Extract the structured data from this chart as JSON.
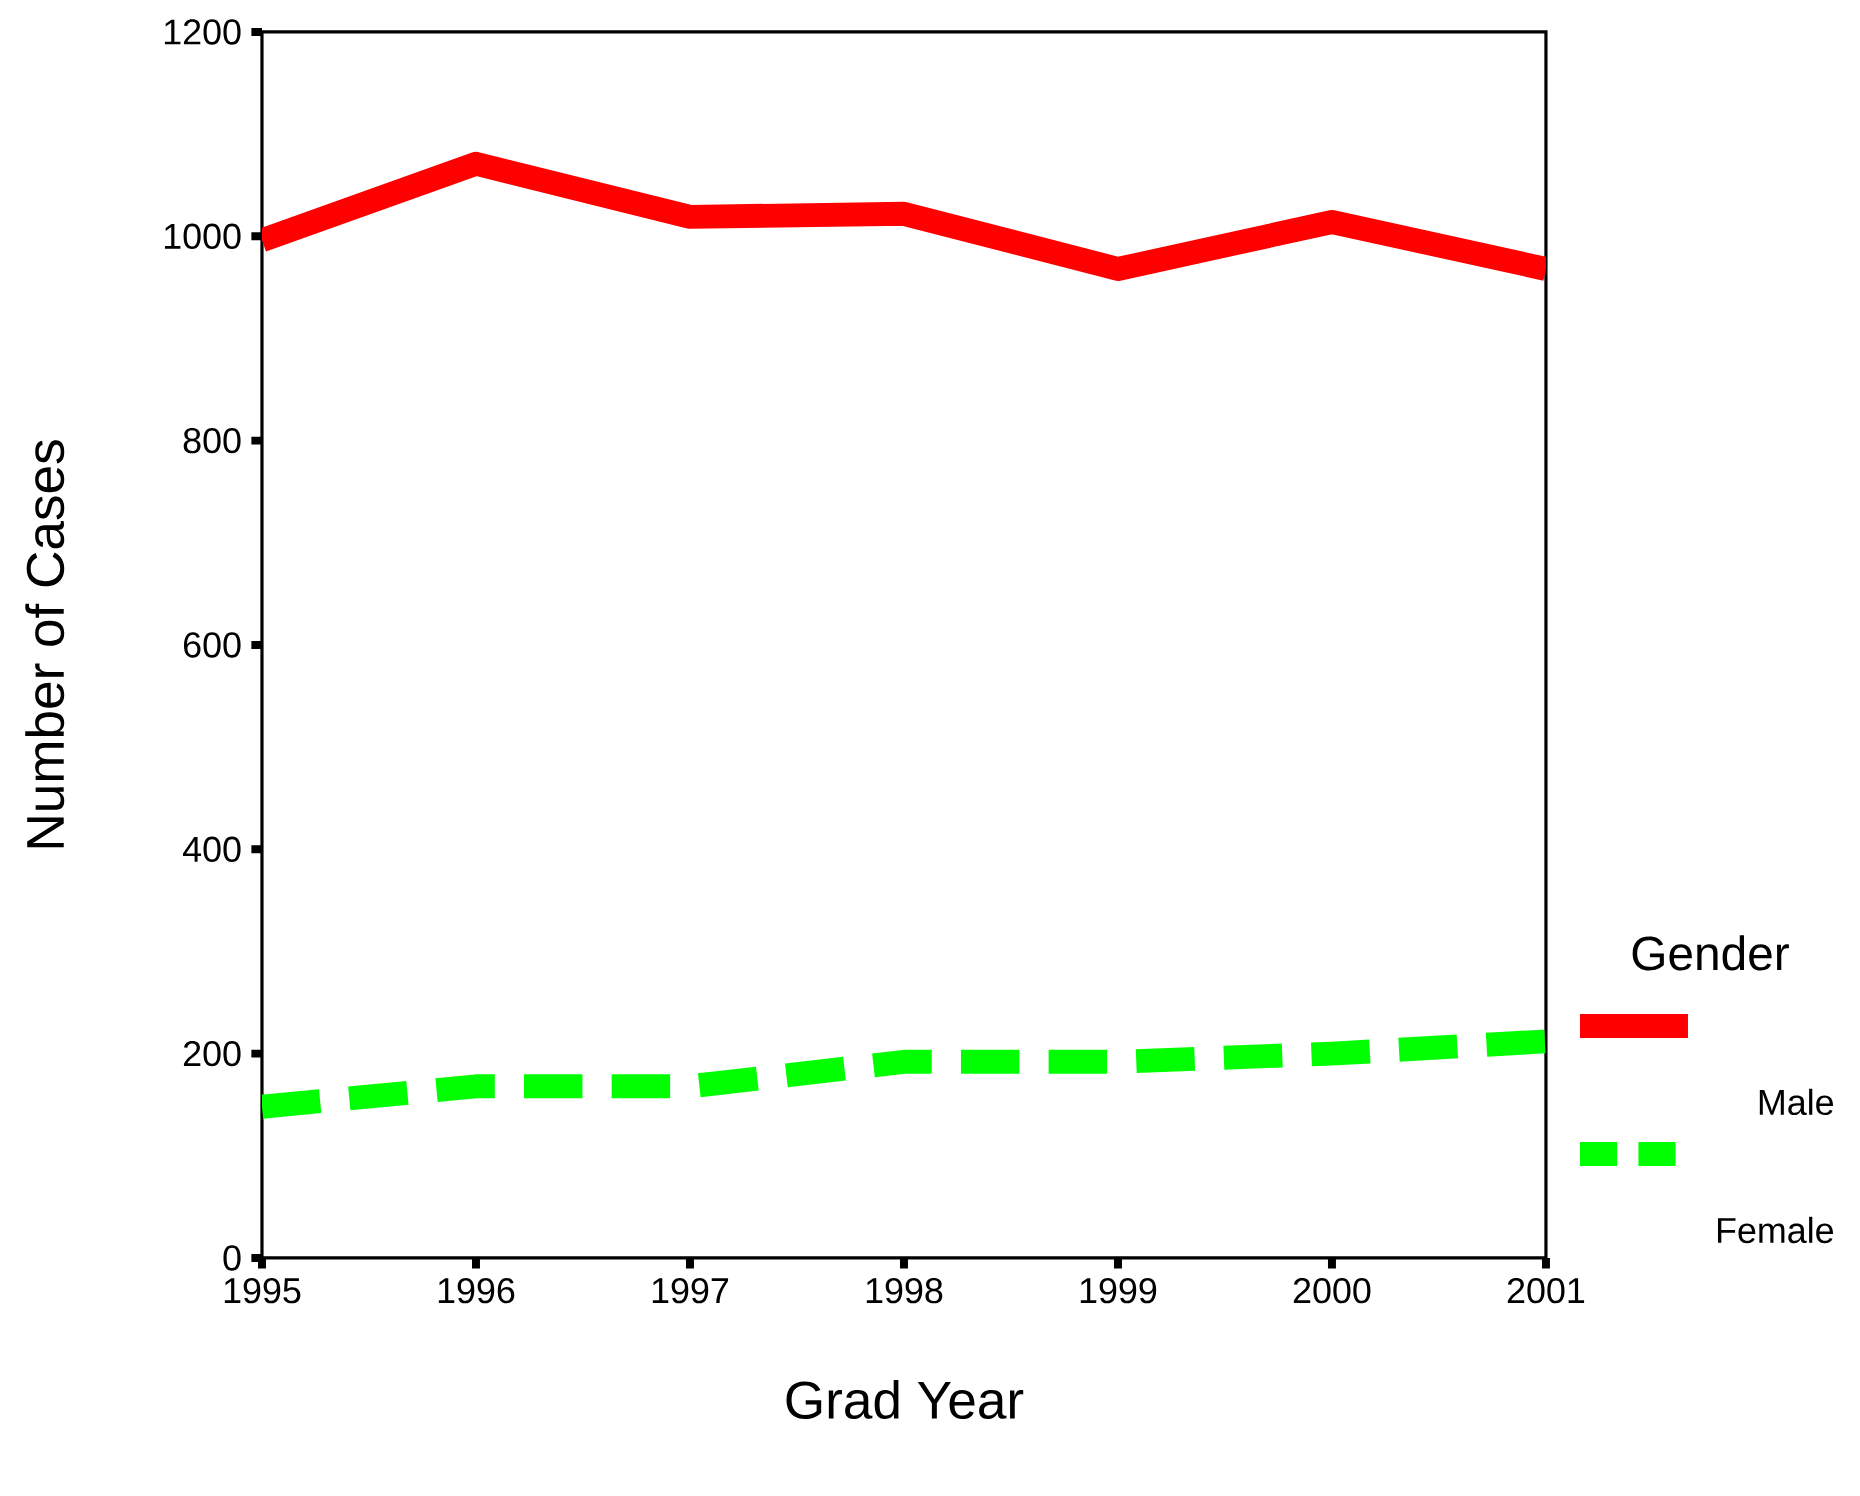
{
  "chart_data": {
    "type": "line",
    "xlabel": "Grad Year",
    "ylabel": "Number of Cases",
    "legend_title": "Gender",
    "x": [
      1995,
      1996,
      1997,
      1998,
      1999,
      2000,
      2001
    ],
    "series": [
      {
        "name": "Male",
        "color": "#ff0000",
        "line_style": "solid",
        "values": [
          996,
          1071,
          1019,
          1022,
          968,
          1014,
          968
        ]
      },
      {
        "name": "Female",
        "color": "#00ff00",
        "line_style": "dashed",
        "values": [
          148,
          168,
          168,
          192,
          192,
          200,
          212
        ]
      }
    ],
    "xlim": [
      1995,
      2001
    ],
    "xticks": [
      1995,
      1996,
      1997,
      1998,
      1999,
      2000,
      2001
    ],
    "ylim": [
      0,
      1200
    ],
    "yticks": [
      0,
      200,
      400,
      600,
      800,
      1000,
      1200
    ],
    "grid": false,
    "legend": "right",
    "marker": "none"
  }
}
